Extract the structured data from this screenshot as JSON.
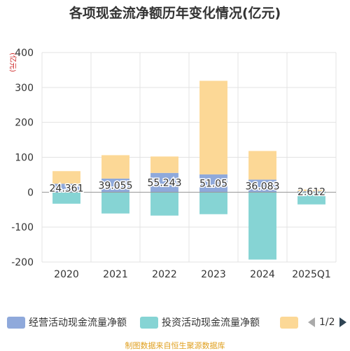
{
  "title": "各项现金流净额历年变化情况(亿元)",
  "footer": "制图数据来自恒生聚源数据库",
  "chart_data": {
    "type": "bar",
    "stacked": true,
    "categories": [
      "2020",
      "2021",
      "2022",
      "2023",
      "2024",
      "2025Q1"
    ],
    "ylabel": "(亿元)",
    "ylim": [
      -200,
      400
    ],
    "yticks": [
      -200,
      -100,
      0,
      100,
      200,
      300,
      400
    ],
    "grid": true,
    "legend_position": "bottom",
    "series": [
      {
        "name": "经营活动现金流量净额",
        "color": "#8fa9db",
        "values": [
          24.361,
          39.055,
          55.243,
          51.05,
          36.083,
          2.612
        ],
        "labels": [
          "24.361",
          "39.055",
          "55.243",
          "51.05",
          "36.083",
          "2.612"
        ]
      },
      {
        "name": "投资活动现金流量净额",
        "color": "#86d4d4",
        "values": [
          -33,
          -61,
          -67,
          -63,
          -193,
          -35
        ]
      },
      {
        "name": "",
        "color": "#fcd896",
        "values": [
          36,
          67,
          47,
          268,
          82,
          5
        ]
      }
    ]
  },
  "legend": {
    "items": [
      {
        "label": "经营活动现金流量净额",
        "color": "#8fa9db"
      },
      {
        "label": "投资活动现金流量净额",
        "color": "#86d4d4"
      },
      {
        "label": "",
        "color": "#fcd896"
      }
    ],
    "pager": "1/2"
  }
}
